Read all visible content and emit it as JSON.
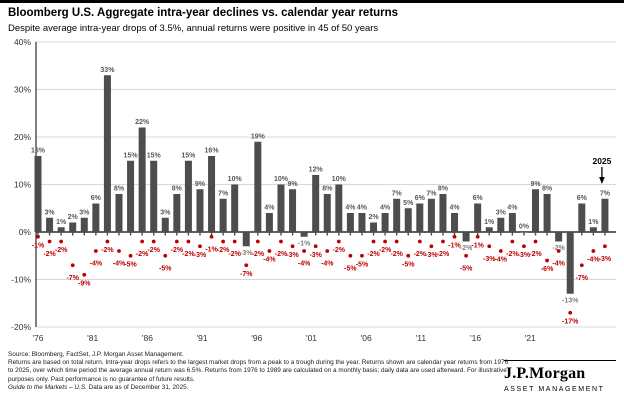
{
  "header": {
    "title": "Bloomberg U.S. Aggregate intra-year declines vs. calendar year returns",
    "subtitle": "Despite average intra-year drops of 3.5%, annual returns were positive in 45 of 50 years"
  },
  "chart_data": {
    "type": "bar",
    "title": "Bloomberg U.S. Aggregate intra-year declines vs. calendar year returns",
    "x": [
      1976,
      1977,
      1978,
      1979,
      1980,
      1981,
      1982,
      1983,
      1984,
      1985,
      1986,
      1987,
      1988,
      1989,
      1990,
      1991,
      1992,
      1993,
      1994,
      1995,
      1996,
      1997,
      1998,
      1999,
      2000,
      2001,
      2002,
      2003,
      2004,
      2005,
      2006,
      2007,
      2008,
      2009,
      2010,
      2011,
      2012,
      2013,
      2014,
      2015,
      2016,
      2017,
      2018,
      2019,
      2020,
      2021,
      2022,
      2023,
      2024,
      2025
    ],
    "series": [
      {
        "name": "Calendar year return",
        "type": "bar",
        "color": "#4d4d4d",
        "values": [
          16,
          3,
          1,
          2,
          3,
          6,
          33,
          8,
          15,
          22,
          15,
          3,
          8,
          15,
          9,
          16,
          7,
          10,
          -3,
          19,
          4,
          10,
          9,
          -1,
          12,
          8,
          10,
          4,
          4,
          2,
          4,
          7,
          5,
          6,
          7,
          8,
          4,
          -2,
          6,
          1,
          3,
          4,
          0,
          9,
          8,
          -2,
          -13,
          6,
          1,
          7
        ]
      },
      {
        "name": "Intra-year decline",
        "type": "scatter",
        "color": "#c00000",
        "values": [
          -1,
          -2,
          -2,
          -7,
          -9,
          -4,
          -2,
          -4,
          -5,
          -2,
          -2,
          -5,
          -2,
          -2,
          -3,
          -1,
          -2,
          -2,
          -7,
          -2,
          -4,
          -2,
          -3,
          -4,
          -3,
          -4,
          -2,
          -5,
          -5,
          -2,
          -2,
          -2,
          -5,
          -2,
          -3,
          -2,
          -1,
          -5,
          -1,
          -3,
          -4,
          -2,
          -3,
          -2,
          -6,
          -4,
          -17,
          -7,
          -4,
          -3
        ]
      }
    ],
    "ylim": [
      -20,
      40
    ],
    "yticks": [
      40,
      30,
      20,
      10,
      0,
      -10,
      -20
    ],
    "ytick_suffix": "%",
    "x_tick_labels": [
      "'76",
      "'81",
      "'86",
      "'91",
      "'96",
      "'01",
      "'06",
      "'11",
      "'16",
      "'21"
    ],
    "grid": "horizontal",
    "legend": "none",
    "annotation": {
      "label": "2025",
      "year": 2025
    },
    "bar_label_color_positive": "#595959",
    "bar_label_color_negative": "#7f7f7f"
  },
  "footer": {
    "source": "Source: Bloomberg, FactSet, J.P. Morgan Asset Management.",
    "note": "Returns are based on total return. Intra-year drops refers to the largest market drops from a peak to a trough during the year. Returns shown are calendar year returns from 1976 to 2025, over which time period the average annual return was 6.5%. Returns from 1976 to 1989 are calculated on a monthly basis; daily data are used afterward. For illustrative purposes only. Past performance is no guarantee of future results.",
    "gtm_italic": "Guide to the Markets – U.S.",
    "gtm_rest": " Data are as of December 31, 2025."
  },
  "logo": {
    "name": "J.P.Morgan",
    "division": "ASSET MANAGEMENT"
  }
}
